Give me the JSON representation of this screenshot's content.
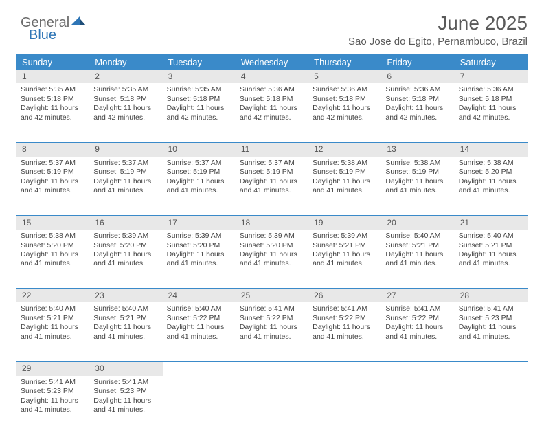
{
  "brand": {
    "part1": "General",
    "part2": "Blue"
  },
  "header": {
    "month_title": "June 2025",
    "location": "Sao Jose do Egito, Pernambuco, Brazil"
  },
  "calendar": {
    "day_headers": [
      "Sunday",
      "Monday",
      "Tuesday",
      "Wednesday",
      "Thursday",
      "Friday",
      "Saturday"
    ],
    "colors": {
      "header_bg": "#3a8ac9",
      "header_text": "#ffffff",
      "daynum_bg": "#e8e8e8",
      "row_border": "#3a8ac9",
      "body_text": "#444444"
    },
    "weeks": [
      {
        "days": [
          {
            "num": "1",
            "sunrise": "Sunrise: 5:35 AM",
            "sunset": "Sunset: 5:18 PM",
            "daylight1": "Daylight: 11 hours",
            "daylight2": "and 42 minutes."
          },
          {
            "num": "2",
            "sunrise": "Sunrise: 5:35 AM",
            "sunset": "Sunset: 5:18 PM",
            "daylight1": "Daylight: 11 hours",
            "daylight2": "and 42 minutes."
          },
          {
            "num": "3",
            "sunrise": "Sunrise: 5:35 AM",
            "sunset": "Sunset: 5:18 PM",
            "daylight1": "Daylight: 11 hours",
            "daylight2": "and 42 minutes."
          },
          {
            "num": "4",
            "sunrise": "Sunrise: 5:36 AM",
            "sunset": "Sunset: 5:18 PM",
            "daylight1": "Daylight: 11 hours",
            "daylight2": "and 42 minutes."
          },
          {
            "num": "5",
            "sunrise": "Sunrise: 5:36 AM",
            "sunset": "Sunset: 5:18 PM",
            "daylight1": "Daylight: 11 hours",
            "daylight2": "and 42 minutes."
          },
          {
            "num": "6",
            "sunrise": "Sunrise: 5:36 AM",
            "sunset": "Sunset: 5:18 PM",
            "daylight1": "Daylight: 11 hours",
            "daylight2": "and 42 minutes."
          },
          {
            "num": "7",
            "sunrise": "Sunrise: 5:36 AM",
            "sunset": "Sunset: 5:18 PM",
            "daylight1": "Daylight: 11 hours",
            "daylight2": "and 42 minutes."
          }
        ]
      },
      {
        "days": [
          {
            "num": "8",
            "sunrise": "Sunrise: 5:37 AM",
            "sunset": "Sunset: 5:19 PM",
            "daylight1": "Daylight: 11 hours",
            "daylight2": "and 41 minutes."
          },
          {
            "num": "9",
            "sunrise": "Sunrise: 5:37 AM",
            "sunset": "Sunset: 5:19 PM",
            "daylight1": "Daylight: 11 hours",
            "daylight2": "and 41 minutes."
          },
          {
            "num": "10",
            "sunrise": "Sunrise: 5:37 AM",
            "sunset": "Sunset: 5:19 PM",
            "daylight1": "Daylight: 11 hours",
            "daylight2": "and 41 minutes."
          },
          {
            "num": "11",
            "sunrise": "Sunrise: 5:37 AM",
            "sunset": "Sunset: 5:19 PM",
            "daylight1": "Daylight: 11 hours",
            "daylight2": "and 41 minutes."
          },
          {
            "num": "12",
            "sunrise": "Sunrise: 5:38 AM",
            "sunset": "Sunset: 5:19 PM",
            "daylight1": "Daylight: 11 hours",
            "daylight2": "and 41 minutes."
          },
          {
            "num": "13",
            "sunrise": "Sunrise: 5:38 AM",
            "sunset": "Sunset: 5:19 PM",
            "daylight1": "Daylight: 11 hours",
            "daylight2": "and 41 minutes."
          },
          {
            "num": "14",
            "sunrise": "Sunrise: 5:38 AM",
            "sunset": "Sunset: 5:20 PM",
            "daylight1": "Daylight: 11 hours",
            "daylight2": "and 41 minutes."
          }
        ]
      },
      {
        "days": [
          {
            "num": "15",
            "sunrise": "Sunrise: 5:38 AM",
            "sunset": "Sunset: 5:20 PM",
            "daylight1": "Daylight: 11 hours",
            "daylight2": "and 41 minutes."
          },
          {
            "num": "16",
            "sunrise": "Sunrise: 5:39 AM",
            "sunset": "Sunset: 5:20 PM",
            "daylight1": "Daylight: 11 hours",
            "daylight2": "and 41 minutes."
          },
          {
            "num": "17",
            "sunrise": "Sunrise: 5:39 AM",
            "sunset": "Sunset: 5:20 PM",
            "daylight1": "Daylight: 11 hours",
            "daylight2": "and 41 minutes."
          },
          {
            "num": "18",
            "sunrise": "Sunrise: 5:39 AM",
            "sunset": "Sunset: 5:20 PM",
            "daylight1": "Daylight: 11 hours",
            "daylight2": "and 41 minutes."
          },
          {
            "num": "19",
            "sunrise": "Sunrise: 5:39 AM",
            "sunset": "Sunset: 5:21 PM",
            "daylight1": "Daylight: 11 hours",
            "daylight2": "and 41 minutes."
          },
          {
            "num": "20",
            "sunrise": "Sunrise: 5:40 AM",
            "sunset": "Sunset: 5:21 PM",
            "daylight1": "Daylight: 11 hours",
            "daylight2": "and 41 minutes."
          },
          {
            "num": "21",
            "sunrise": "Sunrise: 5:40 AM",
            "sunset": "Sunset: 5:21 PM",
            "daylight1": "Daylight: 11 hours",
            "daylight2": "and 41 minutes."
          }
        ]
      },
      {
        "days": [
          {
            "num": "22",
            "sunrise": "Sunrise: 5:40 AM",
            "sunset": "Sunset: 5:21 PM",
            "daylight1": "Daylight: 11 hours",
            "daylight2": "and 41 minutes."
          },
          {
            "num": "23",
            "sunrise": "Sunrise: 5:40 AM",
            "sunset": "Sunset: 5:21 PM",
            "daylight1": "Daylight: 11 hours",
            "daylight2": "and 41 minutes."
          },
          {
            "num": "24",
            "sunrise": "Sunrise: 5:40 AM",
            "sunset": "Sunset: 5:22 PM",
            "daylight1": "Daylight: 11 hours",
            "daylight2": "and 41 minutes."
          },
          {
            "num": "25",
            "sunrise": "Sunrise: 5:41 AM",
            "sunset": "Sunset: 5:22 PM",
            "daylight1": "Daylight: 11 hours",
            "daylight2": "and 41 minutes."
          },
          {
            "num": "26",
            "sunrise": "Sunrise: 5:41 AM",
            "sunset": "Sunset: 5:22 PM",
            "daylight1": "Daylight: 11 hours",
            "daylight2": "and 41 minutes."
          },
          {
            "num": "27",
            "sunrise": "Sunrise: 5:41 AM",
            "sunset": "Sunset: 5:22 PM",
            "daylight1": "Daylight: 11 hours",
            "daylight2": "and 41 minutes."
          },
          {
            "num": "28",
            "sunrise": "Sunrise: 5:41 AM",
            "sunset": "Sunset: 5:23 PM",
            "daylight1": "Daylight: 11 hours",
            "daylight2": "and 41 minutes."
          }
        ]
      },
      {
        "days": [
          {
            "num": "29",
            "sunrise": "Sunrise: 5:41 AM",
            "sunset": "Sunset: 5:23 PM",
            "daylight1": "Daylight: 11 hours",
            "daylight2": "and 41 minutes."
          },
          {
            "num": "30",
            "sunrise": "Sunrise: 5:41 AM",
            "sunset": "Sunset: 5:23 PM",
            "daylight1": "Daylight: 11 hours",
            "daylight2": "and 41 minutes."
          },
          null,
          null,
          null,
          null,
          null
        ]
      }
    ]
  }
}
